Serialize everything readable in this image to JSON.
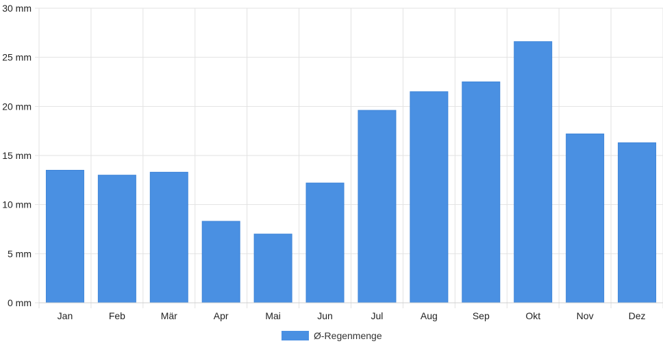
{
  "chart_data": {
    "type": "bar",
    "categories": [
      "Jan",
      "Feb",
      "Mär",
      "Apr",
      "Mai",
      "Jun",
      "Jul",
      "Aug",
      "Sep",
      "Okt",
      "Nov",
      "Dez"
    ],
    "series": [
      {
        "name": "Ø-Regenmenge",
        "values": [
          13.5,
          13.0,
          13.3,
          8.3,
          7.0,
          12.2,
          19.6,
          21.5,
          22.5,
          26.6,
          17.2,
          16.3
        ],
        "color": "#4a90e2"
      }
    ],
    "ylim": [
      0,
      30
    ],
    "yticks": [
      "0 mm",
      "5 mm",
      "10 mm",
      "15 mm",
      "20 mm",
      "25 mm",
      "30 mm"
    ],
    "grid": true,
    "legend_position": "bottom-center"
  }
}
